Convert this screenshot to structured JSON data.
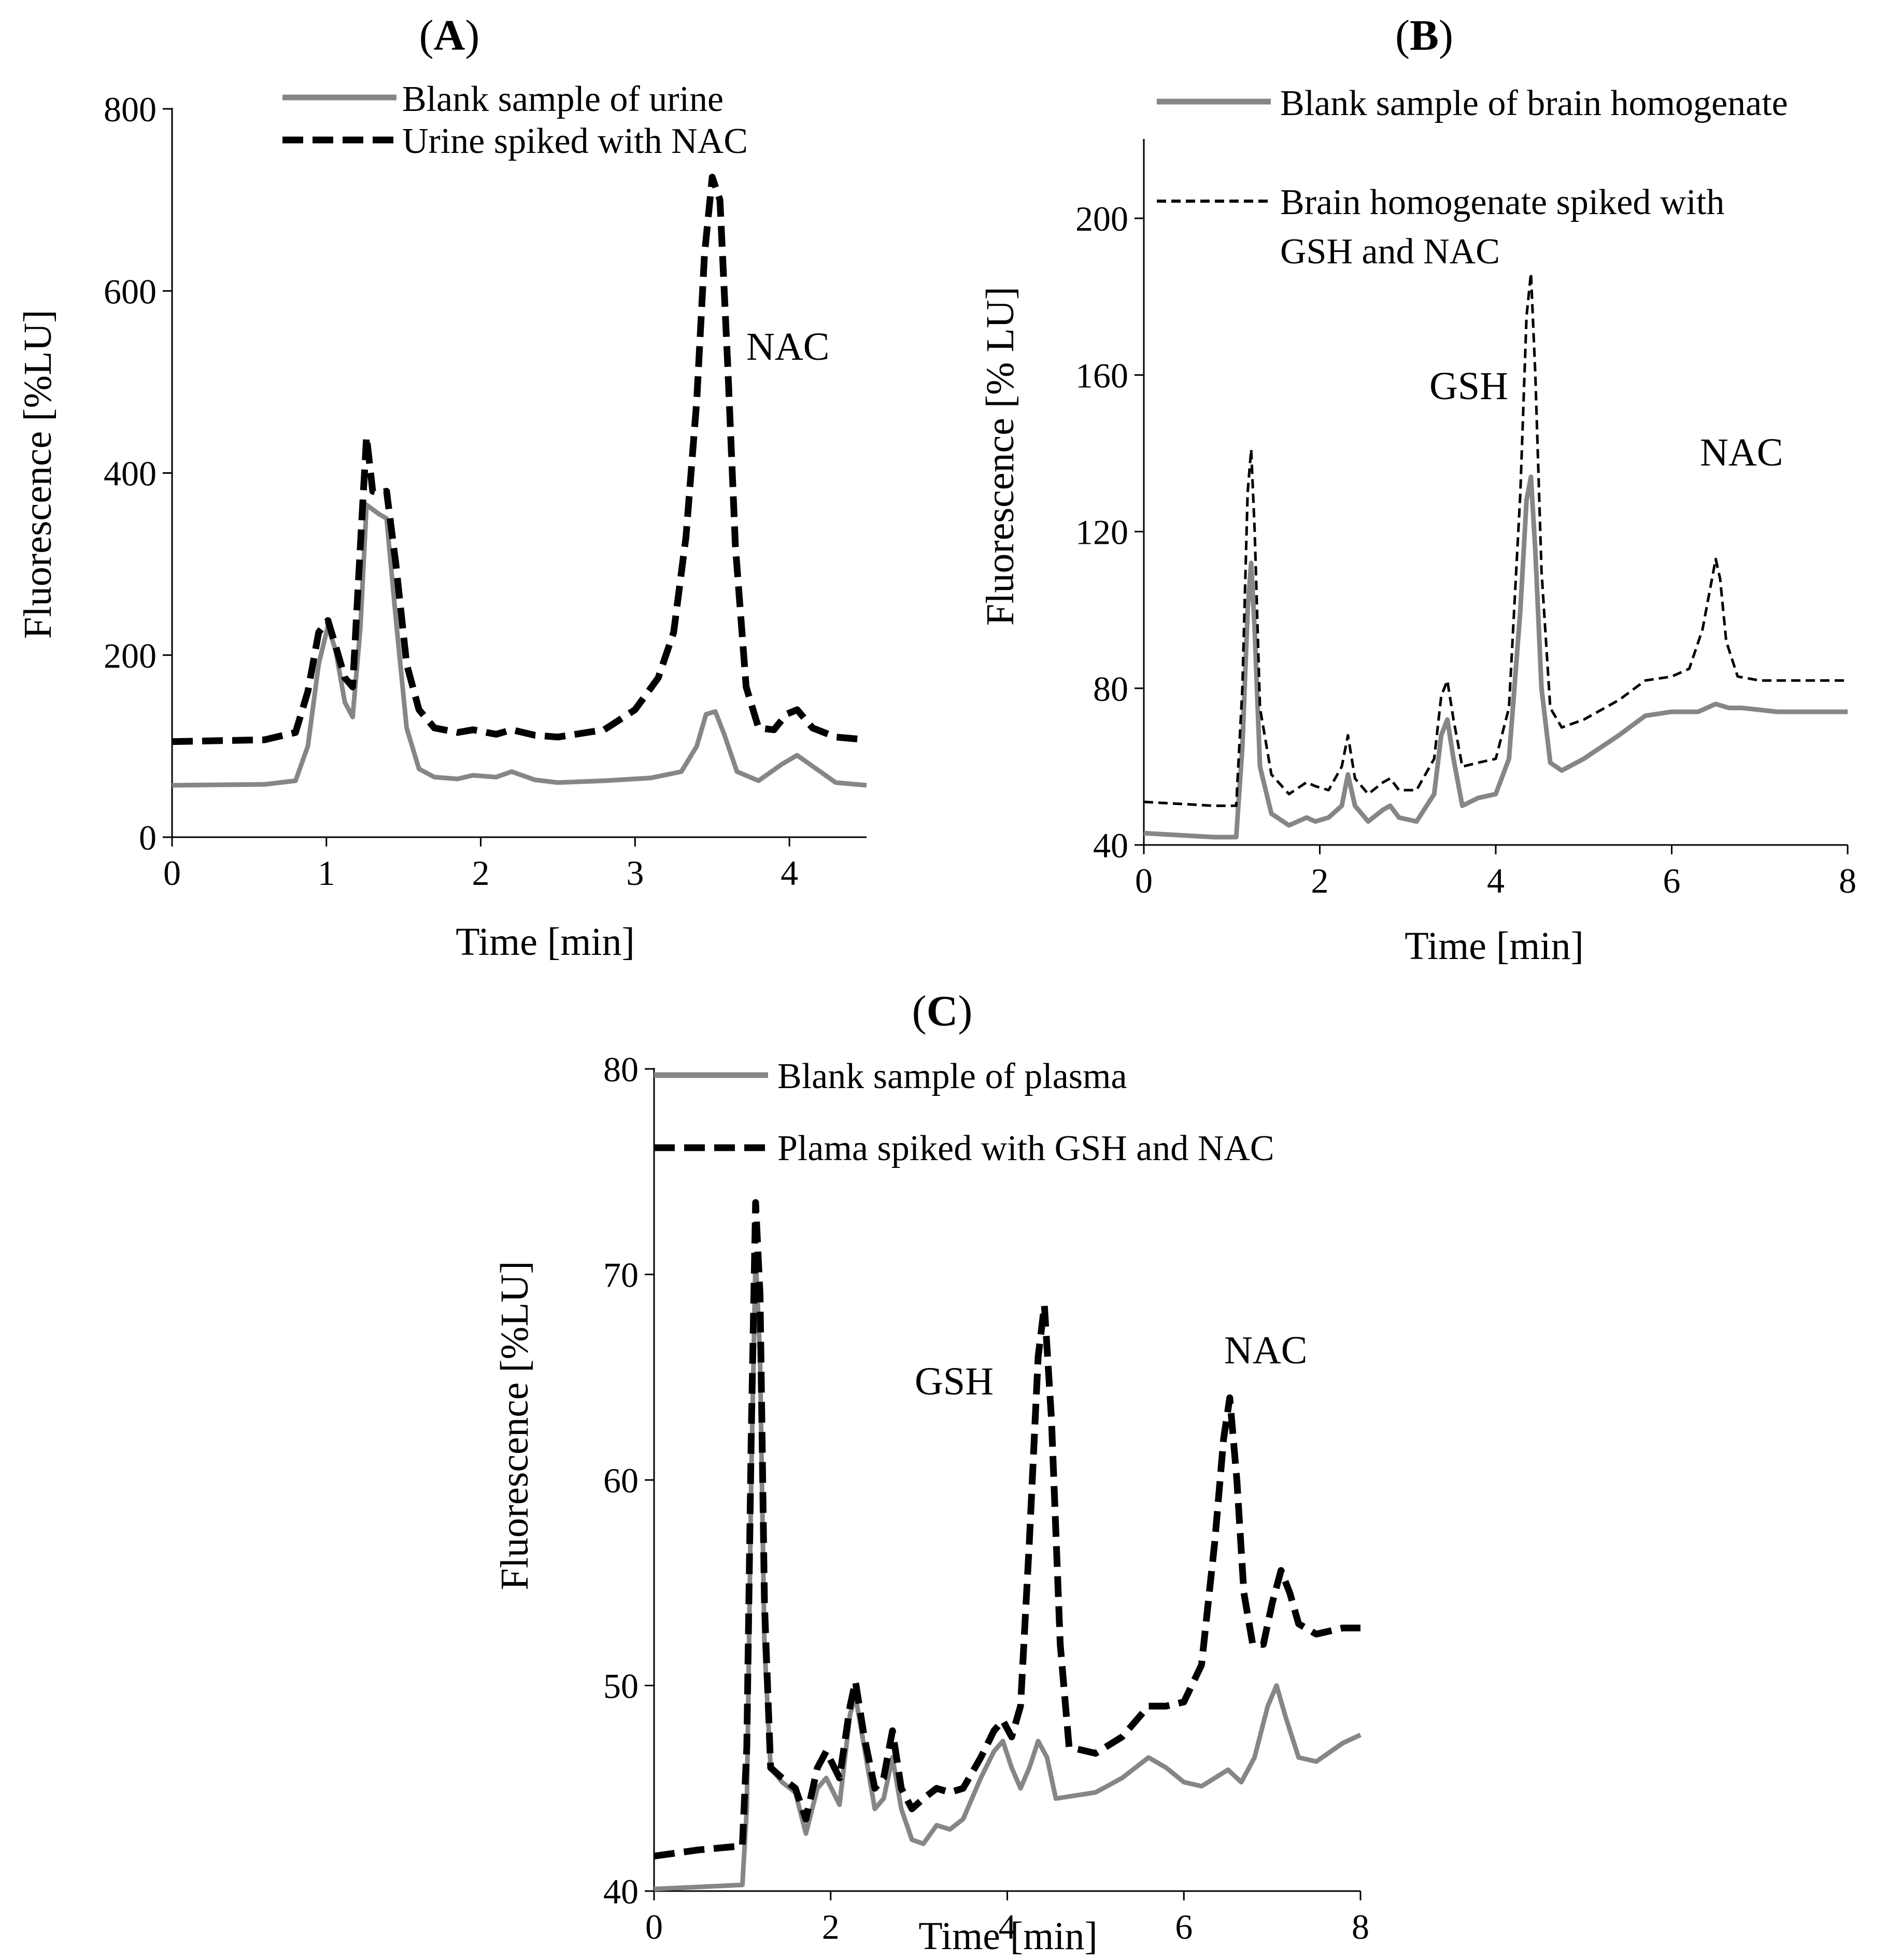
{
  "chart_data": [
    {
      "panel": "(A)",
      "panel_letter": "A",
      "type": "line",
      "xlabel": "Time [min]",
      "ylabel": "Fluorescence [%LU]",
      "xlim": [
        0,
        4.5
      ],
      "ylim": [
        0,
        800
      ],
      "xticks": [
        0,
        1,
        2,
        3,
        4
      ],
      "yticks": [
        0,
        200,
        400,
        600,
        800
      ],
      "legend": [
        {
          "label": "Blank sample of urine",
          "style": "solid-gray"
        },
        {
          "label": "Urine spiked with NAC",
          "style": "dashed-black"
        }
      ],
      "annotations": [
        {
          "text": "NAC",
          "x": 3.7,
          "y": 530
        }
      ],
      "series": [
        {
          "name": "Blank sample of urine",
          "style": "solid-gray",
          "x": [
            0,
            0.6,
            0.8,
            0.88,
            0.95,
            1.01,
            1.06,
            1.12,
            1.17,
            1.22,
            1.26,
            1.3,
            1.34,
            1.39,
            1.45,
            1.52,
            1.6,
            1.7,
            1.85,
            1.95,
            2.1,
            2.2,
            2.35,
            2.5,
            2.8,
            3.1,
            3.3,
            3.4,
            3.46,
            3.52,
            3.58,
            3.66,
            3.8,
            3.95,
            4.05,
            4.15,
            4.3,
            4.5
          ],
          "y": [
            57,
            58,
            62,
            100,
            190,
            232,
            205,
            148,
            132,
            230,
            365,
            360,
            355,
            350,
            240,
            120,
            75,
            66,
            64,
            68,
            66,
            72,
            63,
            60,
            62,
            65,
            72,
            100,
            135,
            138,
            112,
            72,
            62,
            80,
            90,
            78,
            60,
            57
          ]
        },
        {
          "name": "Urine spiked with NAC",
          "style": "dashed-black",
          "x": [
            0,
            0.6,
            0.8,
            0.88,
            0.95,
            1.01,
            1.06,
            1.12,
            1.17,
            1.22,
            1.26,
            1.3,
            1.34,
            1.39,
            1.45,
            1.52,
            1.6,
            1.7,
            1.85,
            1.95,
            2.1,
            2.2,
            2.35,
            2.5,
            2.8,
            3.0,
            3.15,
            3.25,
            3.33,
            3.4,
            3.45,
            3.5,
            3.55,
            3.6,
            3.65,
            3.72,
            3.8,
            3.9,
            3.98,
            4.05,
            4.15,
            4.3,
            4.5
          ],
          "y": [
            105,
            107,
            115,
            160,
            225,
            238,
            210,
            175,
            165,
            320,
            440,
            380,
            378,
            380,
            300,
            190,
            140,
            120,
            115,
            118,
            113,
            118,
            112,
            110,
            118,
            140,
            175,
            225,
            330,
            480,
            640,
            725,
            700,
            520,
            320,
            165,
            120,
            118,
            135,
            140,
            120,
            110,
            107
          ]
        }
      ]
    },
    {
      "panel": "(B)",
      "panel_letter": "B",
      "type": "line",
      "xlabel": "Time [min]",
      "ylabel": "Fluorescence [% LU]",
      "xlim": [
        0,
        8
      ],
      "ylim": [
        40,
        220
      ],
      "xticks": [
        0,
        2,
        4,
        6,
        8
      ],
      "yticks": [
        40,
        80,
        120,
        160,
        200
      ],
      "legend": [
        {
          "label": "Blank sample of brain homogenate",
          "style": "solid-gray"
        },
        {
          "label": "Brain homogenate spiked with",
          "label_line2": "GSH and NAC",
          "style": "dashed-black"
        }
      ],
      "annotations": [
        {
          "text": "GSH",
          "x": 3.95,
          "y": 158
        },
        {
          "text": "NAC",
          "x": 6.55,
          "y": 135
        }
      ],
      "series": [
        {
          "name": "Blank sample of brain homogenate",
          "style": "solid-gray",
          "x": [
            0,
            0.8,
            1.05,
            1.12,
            1.18,
            1.22,
            1.26,
            1.32,
            1.45,
            1.65,
            1.85,
            1.95,
            2.1,
            2.25,
            2.32,
            2.4,
            2.55,
            2.72,
            2.8,
            2.9,
            3.1,
            3.3,
            3.38,
            3.45,
            3.52,
            3.62,
            3.8,
            4.0,
            4.15,
            4.28,
            4.35,
            4.4,
            4.45,
            4.52,
            4.62,
            4.75,
            5.0,
            5.4,
            5.7,
            6.0,
            6.3,
            6.5,
            6.65,
            6.8,
            7.2,
            7.6,
            8.0
          ],
          "y": [
            43,
            42,
            42,
            65,
            100,
            112,
            95,
            60,
            48,
            45,
            47,
            46,
            47,
            50,
            58,
            50,
            46,
            49,
            50,
            47,
            46,
            53,
            68,
            72,
            62,
            50,
            52,
            53,
            62,
            100,
            128,
            134,
            115,
            80,
            61,
            59,
            62,
            68,
            73,
            74,
            74,
            76,
            75,
            75,
            74,
            74,
            74
          ]
        },
        {
          "name": "Brain homogenate spiked with GSH and NAC",
          "style": "dashed-black",
          "x": [
            0,
            0.8,
            1.05,
            1.12,
            1.18,
            1.22,
            1.26,
            1.32,
            1.45,
            1.65,
            1.85,
            1.95,
            2.1,
            2.25,
            2.32,
            2.4,
            2.55,
            2.72,
            2.8,
            2.9,
            3.1,
            3.3,
            3.38,
            3.45,
            3.52,
            3.62,
            3.8,
            4.0,
            4.15,
            4.28,
            4.35,
            4.4,
            4.45,
            4.52,
            4.62,
            4.75,
            5.0,
            5.4,
            5.7,
            6.0,
            6.2,
            6.35,
            6.45,
            6.5,
            6.55,
            6.62,
            6.75,
            7.0,
            7.5,
            8.0
          ],
          "y": [
            51,
            50,
            50,
            80,
            130,
            141,
            120,
            75,
            58,
            53,
            56,
            55,
            54,
            60,
            68,
            57,
            53,
            56,
            57,
            54,
            54,
            62,
            78,
            82,
            72,
            60,
            61,
            62,
            75,
            130,
            175,
            186,
            160,
            110,
            75,
            70,
            72,
            77,
            82,
            83,
            85,
            95,
            107,
            113,
            108,
            92,
            83,
            82,
            82,
            82
          ]
        }
      ]
    },
    {
      "panel": "(C)",
      "panel_letter": "C",
      "type": "line",
      "xlabel": "Time [min]",
      "ylabel": "Fluorescence [%LU]",
      "xlim": [
        0,
        8
      ],
      "ylim": [
        40,
        80
      ],
      "xticks": [
        0,
        2,
        4,
        6,
        8
      ],
      "yticks": [
        40,
        50,
        60,
        70,
        80
      ],
      "legend": [
        {
          "label": "Blank sample of plasma",
          "style": "solid-gray"
        },
        {
          "label": "Plama spiked with GSH and NAC",
          "style": "dashed-black"
        }
      ],
      "annotations": [
        {
          "text": "GSH",
          "x": 3.45,
          "y": 66
        },
        {
          "text": "NAC",
          "x": 7.0,
          "y": 68.3
        }
      ],
      "series": [
        {
          "name": "Blank sample of plasma",
          "style": "solid-gray",
          "x": [
            0,
            0.5,
            1.0,
            1.05,
            1.1,
            1.15,
            1.2,
            1.25,
            1.32,
            1.45,
            1.6,
            1.72,
            1.85,
            1.95,
            2.1,
            2.22,
            2.28,
            2.38,
            2.5,
            2.6,
            2.7,
            2.8,
            2.92,
            3.05,
            3.2,
            3.35,
            3.5,
            3.7,
            3.85,
            3.95,
            4.05,
            4.15,
            4.25,
            4.35,
            4.45,
            4.55,
            4.7,
            5.0,
            5.3,
            5.6,
            5.8,
            6.0,
            6.2,
            6.35,
            6.5,
            6.65,
            6.8,
            6.95,
            7.05,
            7.15,
            7.3,
            7.5,
            7.8,
            8.0
          ],
          "y": [
            40.1,
            40.2,
            40.3,
            44,
            60,
            71,
            66,
            52,
            46,
            45.3,
            44.8,
            42.8,
            45,
            45.5,
            44.2,
            48.6,
            49.5,
            47,
            44,
            44.5,
            46.5,
            44,
            42.5,
            42.3,
            43.2,
            43,
            43.5,
            45.5,
            46.8,
            47.3,
            46,
            45,
            46,
            47.3,
            46.5,
            44.5,
            44.6,
            44.8,
            45.5,
            46.5,
            46,
            45.3,
            45.1,
            45.5,
            45.9,
            45.3,
            46.5,
            49,
            50,
            48.5,
            46.5,
            46.3,
            47.2,
            47.6
          ]
        },
        {
          "name": "Plama spiked with GSH and NAC",
          "style": "dashed-black",
          "x": [
            0,
            0.5,
            1.0,
            1.05,
            1.1,
            1.15,
            1.2,
            1.25,
            1.32,
            1.45,
            1.6,
            1.72,
            1.85,
            1.95,
            2.1,
            2.22,
            2.28,
            2.38,
            2.5,
            2.6,
            2.7,
            2.8,
            2.92,
            3.05,
            3.2,
            3.35,
            3.5,
            3.7,
            3.85,
            3.95,
            4.05,
            4.15,
            4.25,
            4.35,
            4.42,
            4.5,
            4.6,
            4.7,
            5.0,
            5.3,
            5.6,
            5.8,
            6.0,
            6.2,
            6.35,
            6.45,
            6.52,
            6.6,
            6.68,
            6.78,
            6.9,
            7.0,
            7.1,
            7.2,
            7.3,
            7.5,
            7.8,
            8.0
          ],
          "y": [
            41.7,
            42.0,
            42.2,
            47,
            62,
            73.5,
            69,
            54,
            46,
            45.5,
            45,
            43.5,
            46,
            46.8,
            45.5,
            49,
            50.2,
            47.5,
            45,
            45.5,
            47.8,
            45,
            44,
            44.5,
            45,
            44.8,
            45,
            46.5,
            47.8,
            48.3,
            47.5,
            49,
            57,
            66,
            68.5,
            63,
            52,
            47,
            46.7,
            47.5,
            49,
            49,
            49.2,
            51,
            57,
            62,
            64,
            60,
            54.5,
            52,
            52,
            54,
            55.6,
            54.5,
            53,
            52.5,
            52.8,
            52.8
          ]
        }
      ]
    }
  ]
}
